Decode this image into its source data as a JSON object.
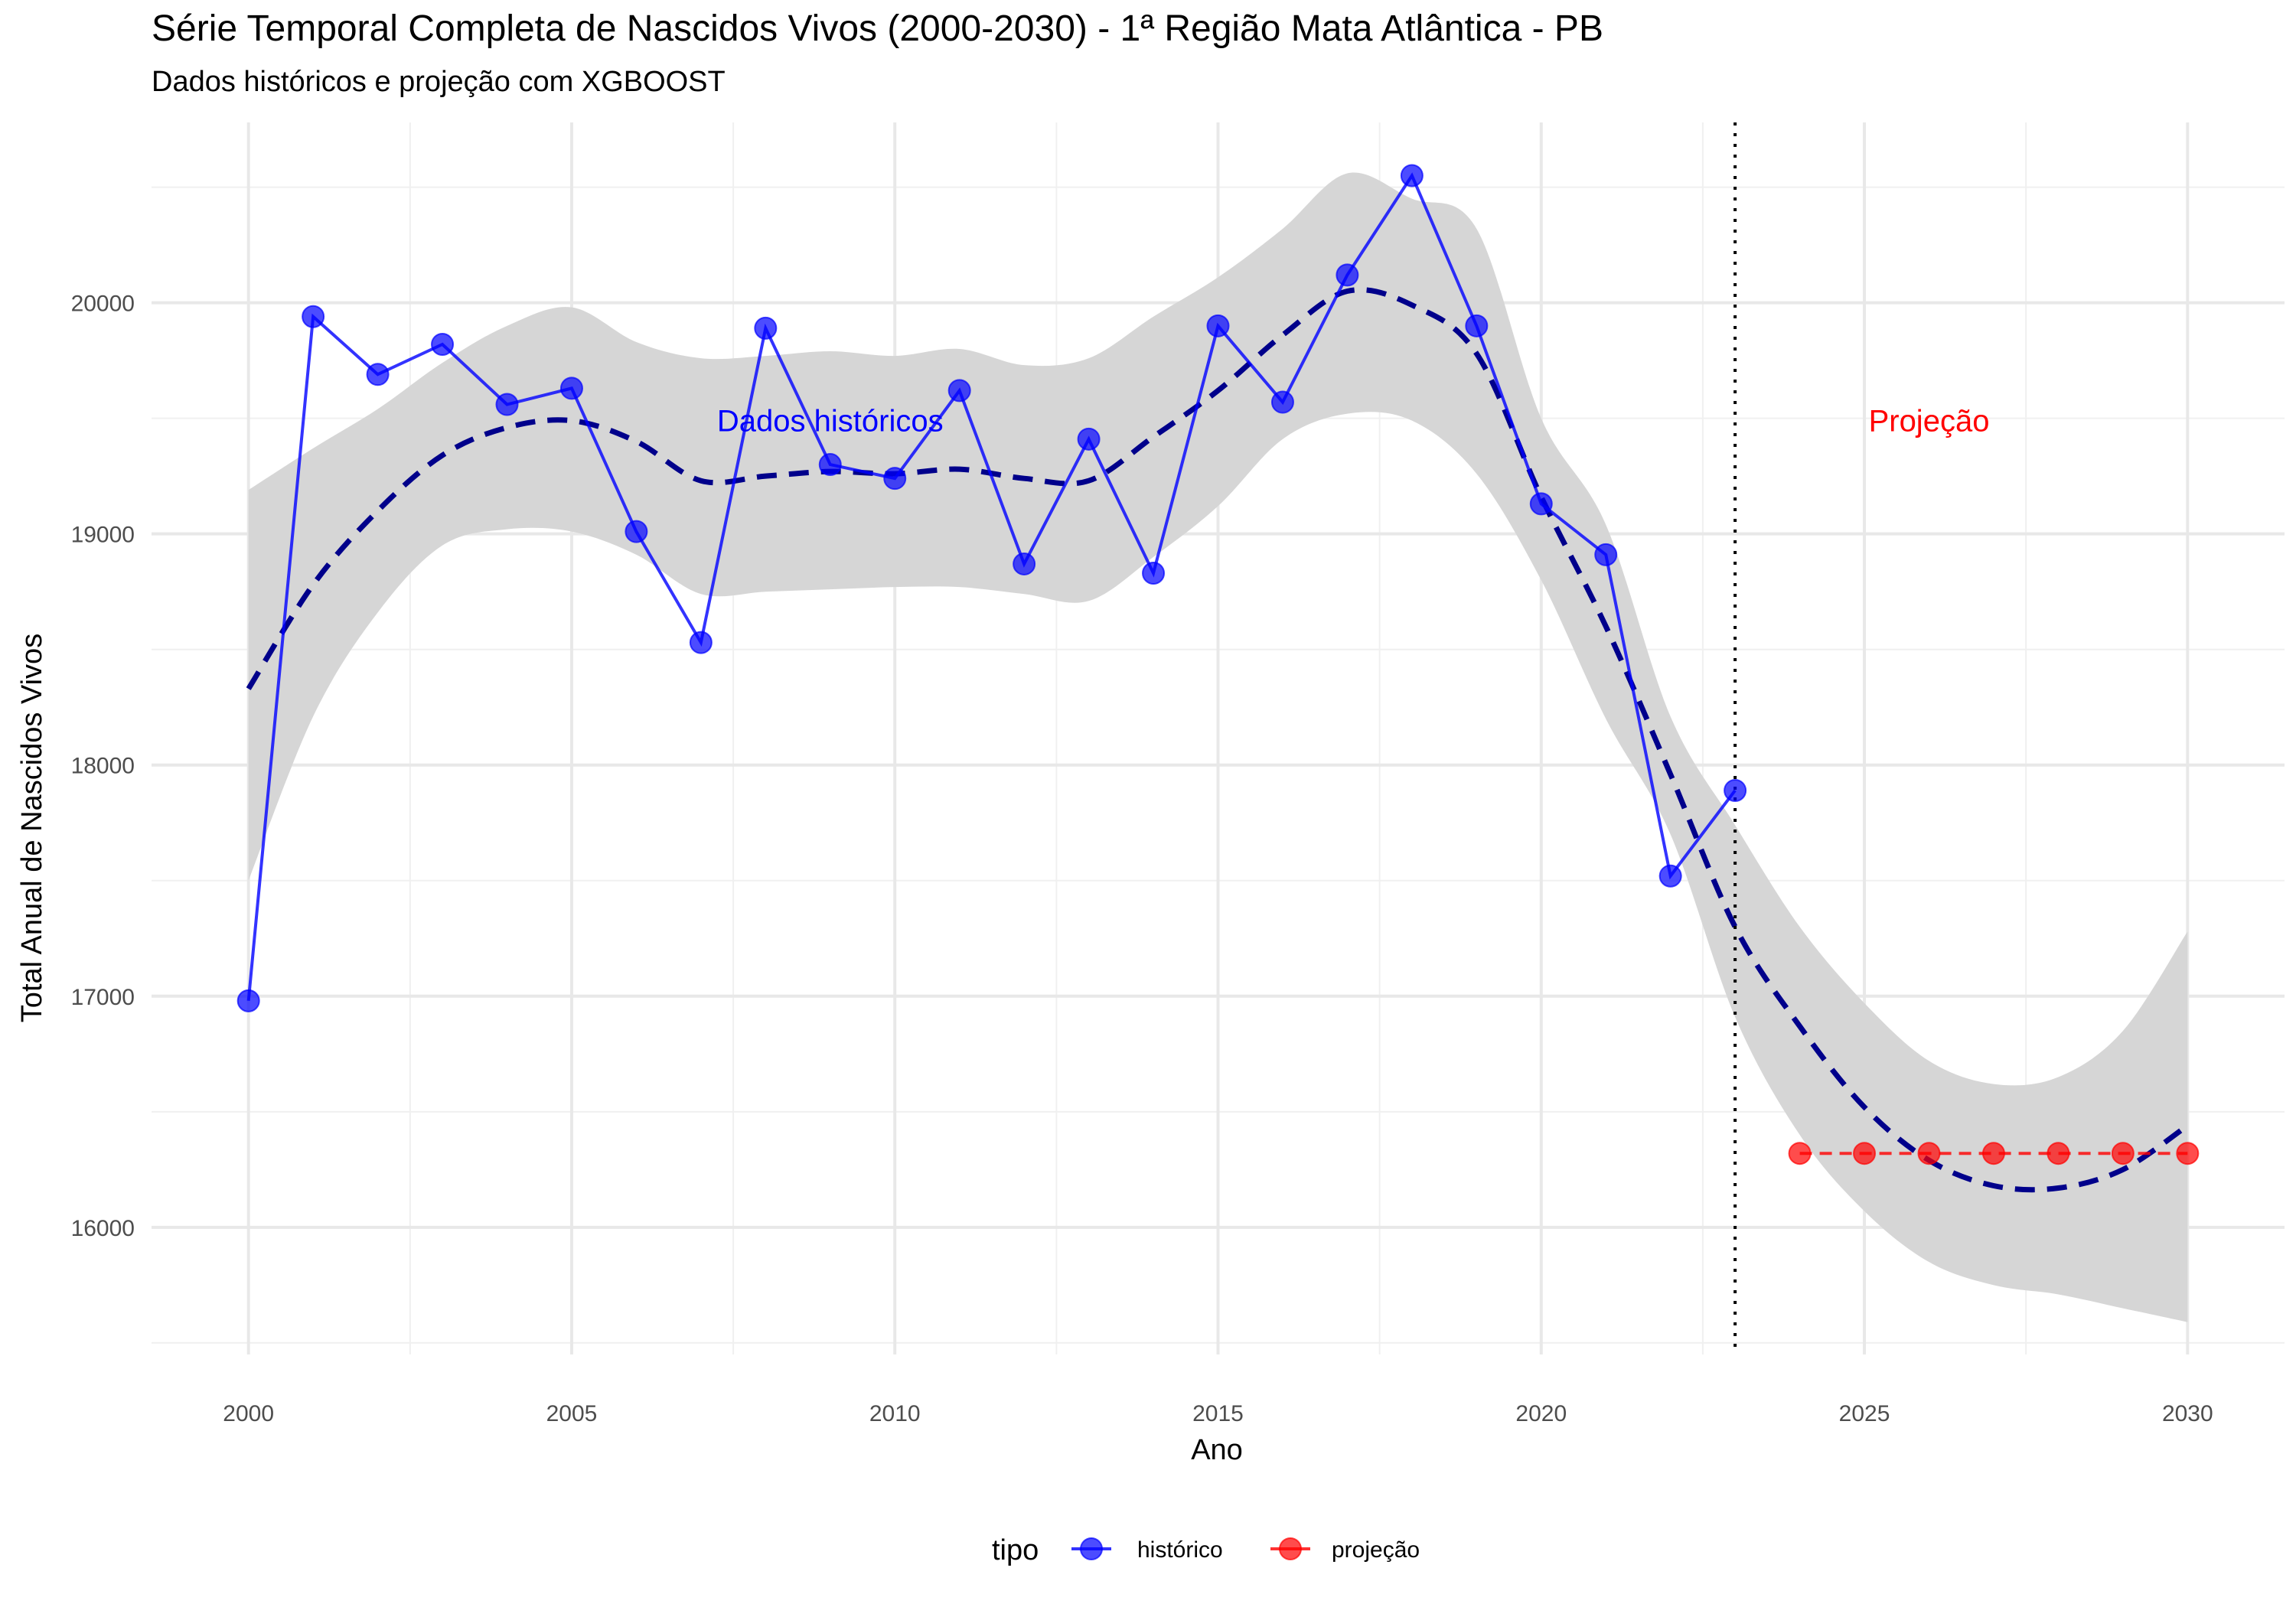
{
  "chart_data": {
    "type": "line",
    "title": "Série Temporal Completa de Nascidos Vivos (2000-2030) -  1ª Região Mata Atlântica - PB",
    "subtitle": "Dados históricos e projeção com XGBOOST",
    "xlabel": "Ano",
    "ylabel": "Total Anual de Nascidos Vivos",
    "xlim": [
      1998.5,
      2031.5
    ],
    "ylim": [
      15450,
      20780
    ],
    "x_ticks": [
      2000,
      2005,
      2010,
      2015,
      2020,
      2025,
      2030
    ],
    "y_ticks": [
      16000,
      17000,
      18000,
      19000,
      20000
    ],
    "grid": true,
    "legend": {
      "title": "tipo",
      "position": "bottom"
    },
    "series": [
      {
        "name": "histórico",
        "color": "#0000ff",
        "x": [
          2000,
          2001,
          2002,
          2003,
          2004,
          2005,
          2006,
          2007,
          2008,
          2009,
          2010,
          2011,
          2012,
          2013,
          2014,
          2015,
          2016,
          2017,
          2018,
          2019,
          2020,
          2021,
          2022,
          2023
        ],
        "y": [
          16980,
          19940,
          19690,
          19820,
          19560,
          19630,
          19010,
          18530,
          19890,
          19300,
          19240,
          19620,
          18870,
          19410,
          18830,
          19900,
          19570,
          20120,
          20550,
          19900,
          19130,
          18910,
          17520,
          17890
        ]
      },
      {
        "name": "projeção",
        "color": "#ff0000",
        "x": [
          2024,
          2025,
          2026,
          2027,
          2028,
          2029,
          2030
        ],
        "y": [
          16320,
          16320,
          16320,
          16320,
          16320,
          16320,
          16320
        ]
      }
    ],
    "trend": {
      "color": "#00008b",
      "style": "dashed",
      "x": [
        2000,
        2001,
        2002,
        2003,
        2004,
        2005,
        2006,
        2007,
        2008,
        2009,
        2010,
        2011,
        2012,
        2013,
        2014,
        2015,
        2016,
        2017,
        2018,
        2019,
        2020,
        2021,
        2022,
        2023,
        2024,
        2025,
        2026,
        2027,
        2028,
        2029,
        2030
      ],
      "y": [
        18330,
        18780,
        19100,
        19340,
        19460,
        19490,
        19400,
        19230,
        19250,
        19270,
        19260,
        19280,
        19240,
        19230,
        19420,
        19620,
        19860,
        20050,
        19990,
        19780,
        19160,
        18600,
        17960,
        17300,
        16870,
        16520,
        16290,
        16180,
        16170,
        16250,
        16440
      ],
      "band_upper": [
        19190,
        19370,
        19540,
        19740,
        19900,
        19980,
        19830,
        19760,
        19770,
        19790,
        19770,
        19800,
        19730,
        19760,
        19940,
        20110,
        20320,
        20560,
        20450,
        20320,
        19500,
        19040,
        18210,
        17740,
        17300,
        16970,
        16720,
        16620,
        16650,
        16850,
        17280
      ],
      "band_lower": [
        17500,
        18210,
        18660,
        18950,
        19020,
        19010,
        18910,
        18740,
        18750,
        18760,
        18770,
        18770,
        18740,
        18710,
        18900,
        19120,
        19410,
        19520,
        19490,
        19260,
        18800,
        18200,
        17700,
        16910,
        16400,
        16070,
        15850,
        15750,
        15710,
        15650,
        15590
      ]
    },
    "vline": {
      "x": 2023,
      "style": "dotted",
      "color": "#000000"
    },
    "annotations": [
      {
        "text": "Dados históricos",
        "x": 2009,
        "y": 19490,
        "color": "#0000ff"
      },
      {
        "text": "Projeção",
        "x": 2026,
        "y": 19490,
        "color": "#ff0000"
      }
    ]
  }
}
